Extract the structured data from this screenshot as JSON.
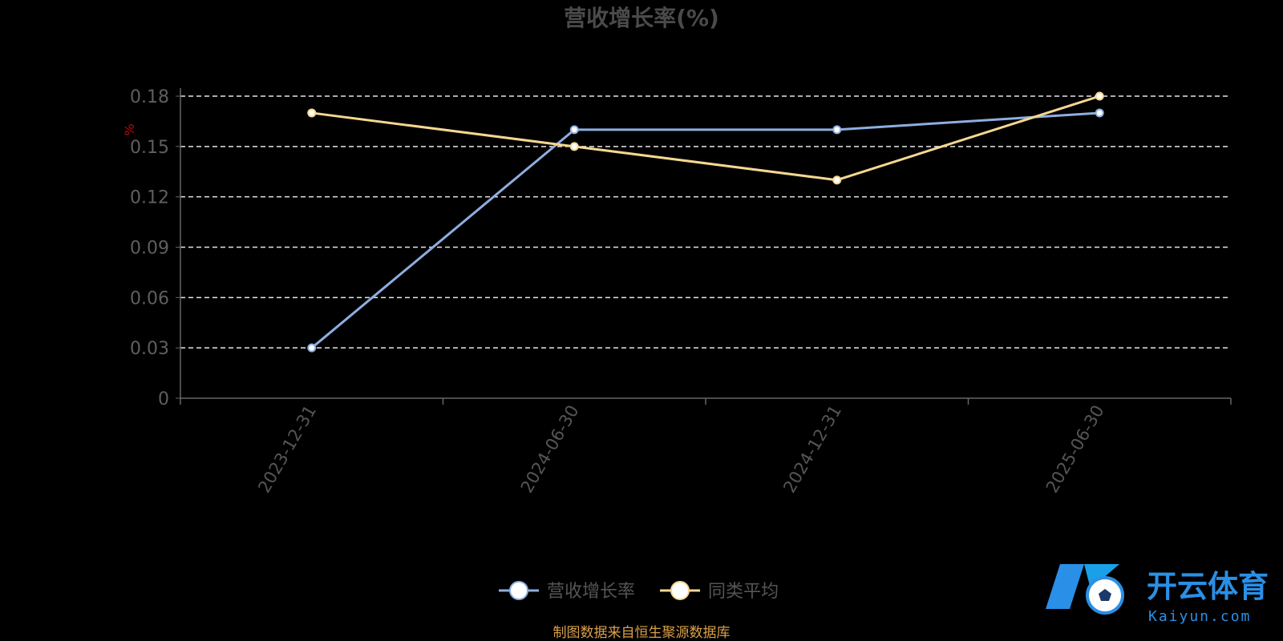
{
  "chart_data": {
    "type": "line",
    "title": "营收增长率(%)",
    "ylabel": "%",
    "categories": [
      "2023-12-31",
      "2024-06-30",
      "2024-12-31",
      "2025-06-30"
    ],
    "ylim": [
      0,
      0.18
    ],
    "yticks": [
      "0",
      "0.03",
      "0.06",
      "0.09",
      "0.12",
      "0.15",
      "0.18"
    ],
    "grid": true,
    "legend_position": "bottom",
    "series": [
      {
        "name": "营收增长率",
        "values": [
          0.03,
          0.16,
          0.16,
          0.17
        ],
        "color": "#8eaee0"
      },
      {
        "name": "同类平均",
        "values": [
          0.17,
          0.15,
          0.13,
          0.18
        ],
        "color": "#f5d792"
      }
    ]
  },
  "source_text": "制图数据来自恒生聚源数据库",
  "logo": {
    "cn": "开云体育",
    "en": "Kaiyun.com",
    "icon": "soccer-ball-icon"
  }
}
